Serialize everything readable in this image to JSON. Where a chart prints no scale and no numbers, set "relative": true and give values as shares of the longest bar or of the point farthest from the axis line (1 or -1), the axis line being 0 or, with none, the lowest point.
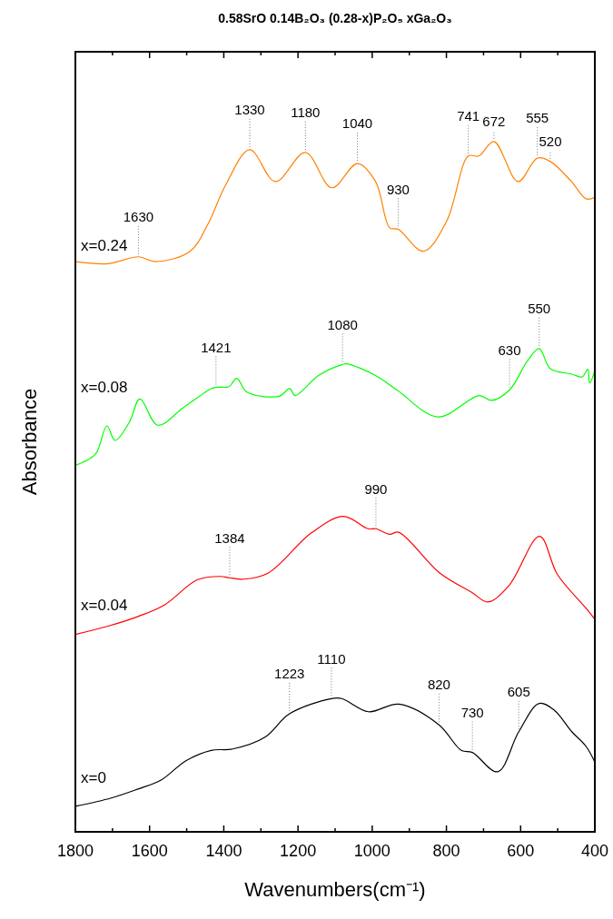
{
  "chart_data": {
    "type": "line",
    "relative": true,
    "title": "0.58SrO 0.14B₂O₃ (0.28-x)P₂O₅ xGa₂O₃",
    "xlabel": "Wavenumbers(cm⁻¹)",
    "ylabel": "Absorbance",
    "xlim": [
      1800,
      400
    ],
    "legend": false,
    "grid": false,
    "xticks": [
      1800,
      {
        "value": 1700,
        "label": null
      },
      1600,
      {
        "value": 1500,
        "label": null
      },
      1400,
      {
        "value": 1300,
        "label": null
      },
      1200,
      {
        "value": 1100,
        "label": null
      },
      1000,
      {
        "value": 900,
        "label": null
      },
      800,
      {
        "value": 700,
        "label": null
      },
      600,
      {
        "value": 500,
        "label": null
      },
      400
    ],
    "series": [
      {
        "name": "x=0.24",
        "color": "#ff8000",
        "x": [
          1800,
          1712,
          1630,
          1583,
          1491,
          1443,
          1395,
          1330,
          1261,
          1180,
          1109,
          1040,
          991,
          953,
          930,
          862,
          799,
          741,
          713,
          672,
          607,
          555,
          520,
          463,
          424,
          400
        ],
        "values": [
          0.826,
          0.823,
          0.833,
          0.826,
          0.841,
          0.88,
          0.937,
          0.988,
          0.942,
          0.984,
          0.933,
          0.968,
          0.942,
          0.875,
          0.873,
          0.841,
          0.885,
          0.979,
          0.979,
          1,
          0.942,
          0.976,
          0.971,
          0.942,
          0.917,
          0.919
        ]
      },
      {
        "name": "x=0.08",
        "color": "#00ff00",
        "x": [
          1800,
          1746,
          1715,
          1693,
          1655,
          1626,
          1578,
          1510,
          1434,
          1421,
          1386,
          1365,
          1338,
          1251,
          1222,
          1208,
          1145,
          1080,
          1068,
          991,
          933,
          823,
          712,
          678,
          630,
          582,
          550,
          520,
          462,
          434,
          419,
          414,
          400
        ],
        "values": [
          0.531,
          0.547,
          0.588,
          0.567,
          0.593,
          0.627,
          0.589,
          0.614,
          0.642,
          0.644,
          0.645,
          0.657,
          0.637,
          0.631,
          0.642,
          0.632,
          0.661,
          0.677,
          0.678,
          0.661,
          0.64,
          0.601,
          0.632,
          0.625,
          0.64,
          0.682,
          0.7,
          0.671,
          0.663,
          0.659,
          0.67,
          0.65,
          0.668
        ]
      },
      {
        "name": "x=0.04",
        "color": "#ff0000",
        "x": [
          1800,
          1712,
          1631,
          1559,
          1472,
          1410,
          1384,
          1347,
          1280,
          1164,
          1078,
          1011,
          990,
          953,
          929,
          818,
          732,
          688,
          631,
          549,
          501,
          424,
          400
        ],
        "values": [
          0.286,
          0.298,
          0.312,
          0.329,
          0.365,
          0.37,
          0.368,
          0.366,
          0.375,
          0.433,
          0.457,
          0.439,
          0.439,
          0.431,
          0.434,
          0.375,
          0.347,
          0.333,
          0.357,
          0.428,
          0.373,
          0.324,
          0.308
        ]
      },
      {
        "name": "x=0",
        "color": "#000000",
        "x": [
          1800,
          1703,
          1631,
          1569,
          1502,
          1434,
          1376,
          1289,
          1223,
          1110,
          1082,
          1010,
          928,
          820,
          760,
          730,
          662,
          605,
          550,
          509,
          462,
          424,
          400
        ],
        "values": [
          0.037,
          0.049,
          0.062,
          0.075,
          0.103,
          0.118,
          0.12,
          0.137,
          0.171,
          0.193,
          0.193,
          0.174,
          0.185,
          0.155,
          0.118,
          0.115,
          0.087,
          0.145,
          0.186,
          0.176,
          0.145,
          0.124,
          0.101
        ]
      }
    ],
    "annotations": [
      {
        "text": "1630",
        "x": 1630,
        "y": 0.833
      },
      {
        "text": "1330",
        "x": 1330,
        "y": 0.988
      },
      {
        "text": "1180",
        "x": 1180,
        "y": 0.984
      },
      {
        "text": "1040",
        "x": 1040,
        "y": 0.968
      },
      {
        "text": "930",
        "x": 930,
        "y": 0.873
      },
      {
        "text": "741",
        "x": 741,
        "y": 0.979
      },
      {
        "text": "672",
        "x": 672,
        "y": 1
      },
      {
        "text": "555",
        "x": 555,
        "y": 0.976
      },
      {
        "text": "520",
        "x": 520,
        "y": 0.971
      },
      {
        "text": "1421",
        "x": 1421,
        "y": 0.644
      },
      {
        "text": "1080",
        "x": 1080,
        "y": 0.677
      },
      {
        "text": "630",
        "x": 630,
        "y": 0.64
      },
      {
        "text": "550",
        "x": 550,
        "y": 0.7
      },
      {
        "text": "990",
        "x": 990,
        "y": 0.439
      },
      {
        "text": "1384",
        "x": 1384,
        "y": 0.368
      },
      {
        "text": "1110",
        "x": 1110,
        "y": 0.193
      },
      {
        "text": "1223",
        "x": 1223,
        "y": 0.171
      },
      {
        "text": "820",
        "x": 820,
        "y": 0.155
      },
      {
        "text": "730",
        "x": 730,
        "y": 0.115
      },
      {
        "text": "605",
        "x": 605,
        "y": 0.145
      }
    ]
  }
}
